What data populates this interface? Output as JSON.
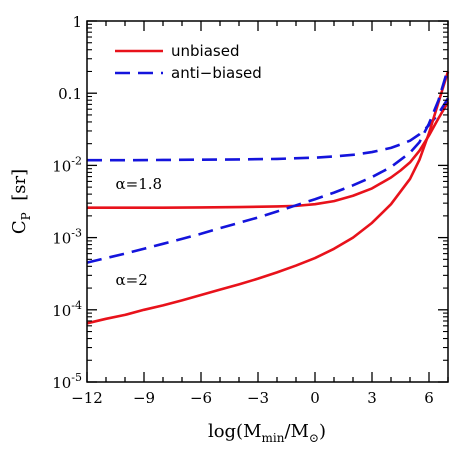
{
  "chart_data": {
    "type": "line",
    "xlabel": "log(M_min/M_⊙)",
    "ylabel": "C_P  [sr]",
    "xlim": [
      -12,
      7
    ],
    "ylim": [
      1e-05,
      1
    ],
    "yscale": "log",
    "x_ticks": [
      -12,
      -9,
      -6,
      -3,
      0,
      3,
      6
    ],
    "x_tick_labels": [
      "−12",
      "−9",
      "−6",
      "−3",
      "0",
      "3",
      "6"
    ],
    "y_ticks": [
      1e-05,
      0.0001,
      0.001,
      0.01,
      0.1,
      1
    ],
    "y_tick_labels": [
      {
        "base": "10",
        "exp": "-5"
      },
      {
        "base": "10",
        "exp": "-4"
      },
      {
        "base": "10",
        "exp": "-3"
      },
      {
        "base": "10",
        "exp": "-2"
      },
      {
        "base": "0.1",
        "exp": ""
      },
      {
        "base": "1",
        "exp": ""
      }
    ],
    "grid": false,
    "legend_position": "top-left",
    "legend": [
      {
        "label": "unbiased",
        "color": "#e8121b",
        "dash": "solid"
      },
      {
        "label": "anti−biased",
        "color": "#1414dc",
        "dash": "dashed"
      }
    ],
    "annotations": [
      {
        "text": "α=1.8",
        "x": -10.5,
        "y": 0.0055
      },
      {
        "text": "α=2",
        "x": -10.5,
        "y": 0.00026
      }
    ],
    "series": [
      {
        "group": "alpha=1.8",
        "style": "unbiased",
        "color": "#e8121b",
        "dash": "solid",
        "x": [
          -12,
          -10,
          -8,
          -6,
          -4,
          -2,
          -1,
          0,
          1,
          2,
          3,
          4,
          4.5,
          5,
          5.5,
          6,
          6.5,
          7
        ],
        "y": [
          0.0026,
          0.0026,
          0.0026,
          0.00262,
          0.00265,
          0.0027,
          0.00275,
          0.0029,
          0.0032,
          0.0038,
          0.0048,
          0.0068,
          0.0085,
          0.011,
          0.016,
          0.026,
          0.045,
          0.075
        ]
      },
      {
        "group": "alpha=1.8",
        "style": "anti-biased",
        "color": "#1414dc",
        "dash": "dashed",
        "x": [
          -12,
          -10,
          -8,
          -6,
          -4,
          -2,
          0,
          1,
          2,
          3,
          4,
          4.5,
          5,
          5.5,
          6,
          6.5,
          7
        ],
        "y": [
          0.0118,
          0.0118,
          0.0119,
          0.012,
          0.0121,
          0.0123,
          0.0128,
          0.0133,
          0.014,
          0.0153,
          0.0175,
          0.0195,
          0.022,
          0.027,
          0.036,
          0.052,
          0.085
        ]
      },
      {
        "group": "alpha=2",
        "style": "unbiased",
        "color": "#e8121b",
        "dash": "solid",
        "x": [
          -12,
          -11,
          -10,
          -9,
          -8,
          -7,
          -6,
          -5,
          -4,
          -3,
          -2,
          -1,
          0,
          1,
          2,
          3,
          4,
          5,
          5.5,
          6,
          6.5,
          7
        ],
        "y": [
          6.5e-05,
          7.5e-05,
          8.5e-05,
          0.0001,
          0.000115,
          0.000135,
          0.00016,
          0.00019,
          0.000225,
          0.00027,
          0.00033,
          0.00041,
          0.00052,
          0.0007,
          0.001,
          0.0016,
          0.0029,
          0.0065,
          0.012,
          0.028,
          0.075,
          0.2
        ]
      },
      {
        "group": "alpha=2",
        "style": "anti-biased",
        "color": "#1414dc",
        "dash": "dashed",
        "x": [
          -12,
          -11,
          -10,
          -9,
          -8,
          -7,
          -6,
          -5,
          -4,
          -3,
          -2,
          -1,
          0,
          1,
          2,
          3,
          4,
          5,
          5.5,
          6,
          6.5,
          7
        ],
        "y": [
          0.00045,
          0.00052,
          0.0006,
          0.0007,
          0.00082,
          0.00096,
          0.00113,
          0.00135,
          0.0016,
          0.0019,
          0.0023,
          0.0028,
          0.0034,
          0.0042,
          0.0053,
          0.0069,
          0.0095,
          0.015,
          0.021,
          0.038,
          0.08,
          0.22
        ]
      }
    ]
  }
}
